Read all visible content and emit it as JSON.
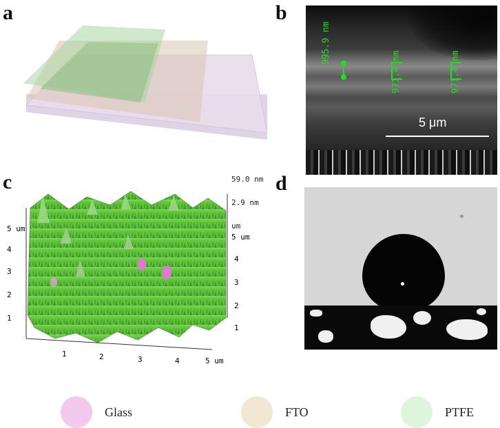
{
  "panels": {
    "a": {
      "label": "a"
    },
    "b": {
      "label": "b",
      "thickness_labels": [
        "995.9 nm",
        "971.4 nm",
        "971.4 nm"
      ],
      "scale_bar_label": "5 μm"
    },
    "c": {
      "label": "c",
      "z_top": "59.0 nm",
      "z_mid": "2.9 nm",
      "z_unit": "um",
      "left_axis_ticks": [
        "1",
        "2",
        "3",
        "4",
        "5 um"
      ],
      "right_axis_ticks": [
        "1",
        "2",
        "3",
        "4",
        "5 um"
      ],
      "bottom_axis_ticks": [
        "1",
        "2",
        "3",
        "4",
        "5 um"
      ]
    },
    "d": {
      "label": "d"
    }
  },
  "legend": {
    "items": [
      {
        "label": "Glass",
        "color": "#f3c9ee"
      },
      {
        "label": "FTO",
        "color": "#f1e7d3"
      },
      {
        "label": "PTFE",
        "color": "#dcf5dc"
      }
    ]
  },
  "colors": {
    "sem_text": "#22dd22",
    "afm_green": "#4fb52f",
    "afm_pink": "#e07ad0"
  }
}
